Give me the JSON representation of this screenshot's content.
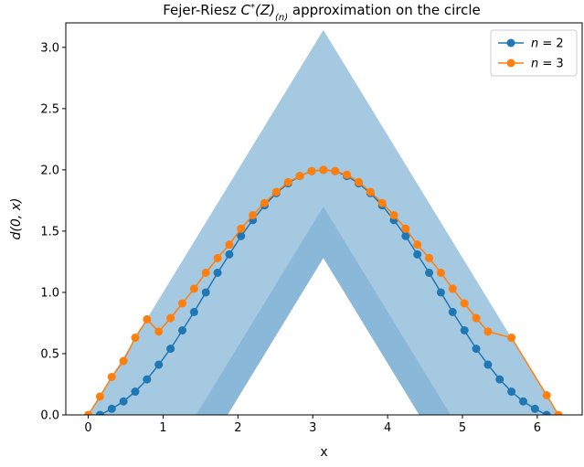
{
  "chart_data": {
    "type": "line",
    "title_parts": [
      "Fejer-Riesz ",
      "C",
      "*",
      "(Z)",
      "(n)",
      " approximation on the circle"
    ],
    "xlabel": "x",
    "ylabel": "d(0, x)",
    "xlim": [
      -0.3,
      6.6
    ],
    "ylim": [
      0,
      3.2
    ],
    "xticks": [
      0,
      1,
      2,
      3,
      4,
      5,
      6
    ],
    "yticks": [
      0.0,
      0.5,
      1.0,
      1.5,
      2.0,
      2.5,
      3.0
    ],
    "xtick_labels": [
      "0",
      "1",
      "2",
      "3",
      "4",
      "5",
      "6"
    ],
    "ytick_labels": [
      "0.0",
      "0.5",
      "1.0",
      "1.5",
      "2.0",
      "2.5",
      "3.0"
    ],
    "grid": false,
    "legend_position": "top-right",
    "bands": [
      {
        "peak": 3.14159,
        "half_width": 3.14159,
        "base_y": 0,
        "color": "#1f77b4",
        "opacity": 0.4
      },
      {
        "peak": 3.14159,
        "half_width": 1.7,
        "base_y": 0,
        "color": "#1f77b4",
        "opacity": 0.2
      },
      {
        "peak": 3.14159,
        "half_width": 1.28,
        "base_y": 0,
        "color": "#ffffff",
        "opacity": 1.0
      }
    ],
    "series": [
      {
        "label_var": "n",
        "label_val": "2",
        "color": "#1f77b4",
        "x": [
          0.157,
          0.314,
          0.471,
          0.628,
          0.785,
          0.942,
          1.1,
          1.257,
          1.414,
          1.571,
          1.728,
          1.885,
          2.042,
          2.199,
          2.356,
          2.513,
          2.67,
          2.827,
          2.985,
          3.142,
          3.299,
          3.456,
          3.613,
          3.77,
          3.927,
          4.084,
          4.241,
          4.398,
          4.555,
          4.712,
          4.869,
          5.027,
          5.184,
          5.341,
          5.498,
          5.655,
          5.812,
          5.969,
          6.126
        ],
        "y": [
          0.0,
          0.05,
          0.11,
          0.19,
          0.29,
          0.41,
          0.54,
          0.69,
          0.84,
          1.0,
          1.16,
          1.31,
          1.46,
          1.59,
          1.71,
          1.81,
          1.89,
          1.95,
          1.99,
          2.0,
          1.99,
          1.95,
          1.89,
          1.81,
          1.71,
          1.59,
          1.46,
          1.31,
          1.16,
          1.0,
          0.84,
          0.69,
          0.54,
          0.41,
          0.29,
          0.19,
          0.11,
          0.05,
          0.0
        ]
      },
      {
        "label_var": "n",
        "label_val": "3",
        "color": "#ff7f0e",
        "x": [
          0.0,
          0.157,
          0.314,
          0.471,
          0.628,
          0.785,
          0.942,
          1.1,
          1.257,
          1.414,
          1.571,
          1.728,
          1.885,
          2.042,
          2.199,
          2.356,
          2.513,
          2.67,
          2.827,
          2.985,
          3.142,
          3.299,
          3.456,
          3.613,
          3.77,
          3.927,
          4.084,
          4.241,
          4.398,
          4.555,
          4.712,
          4.869,
          5.027,
          5.184,
          5.341,
          5.655,
          6.126,
          6.283
        ],
        "y": [
          0.0,
          0.15,
          0.31,
          0.44,
          0.63,
          0.78,
          0.68,
          0.79,
          0.91,
          1.03,
          1.16,
          1.28,
          1.39,
          1.52,
          1.63,
          1.73,
          1.82,
          1.9,
          1.95,
          1.99,
          2.0,
          1.99,
          1.96,
          1.9,
          1.82,
          1.73,
          1.63,
          1.52,
          1.39,
          1.28,
          1.16,
          1.03,
          0.91,
          0.79,
          0.68,
          0.63,
          0.16,
          0.0
        ]
      }
    ]
  }
}
